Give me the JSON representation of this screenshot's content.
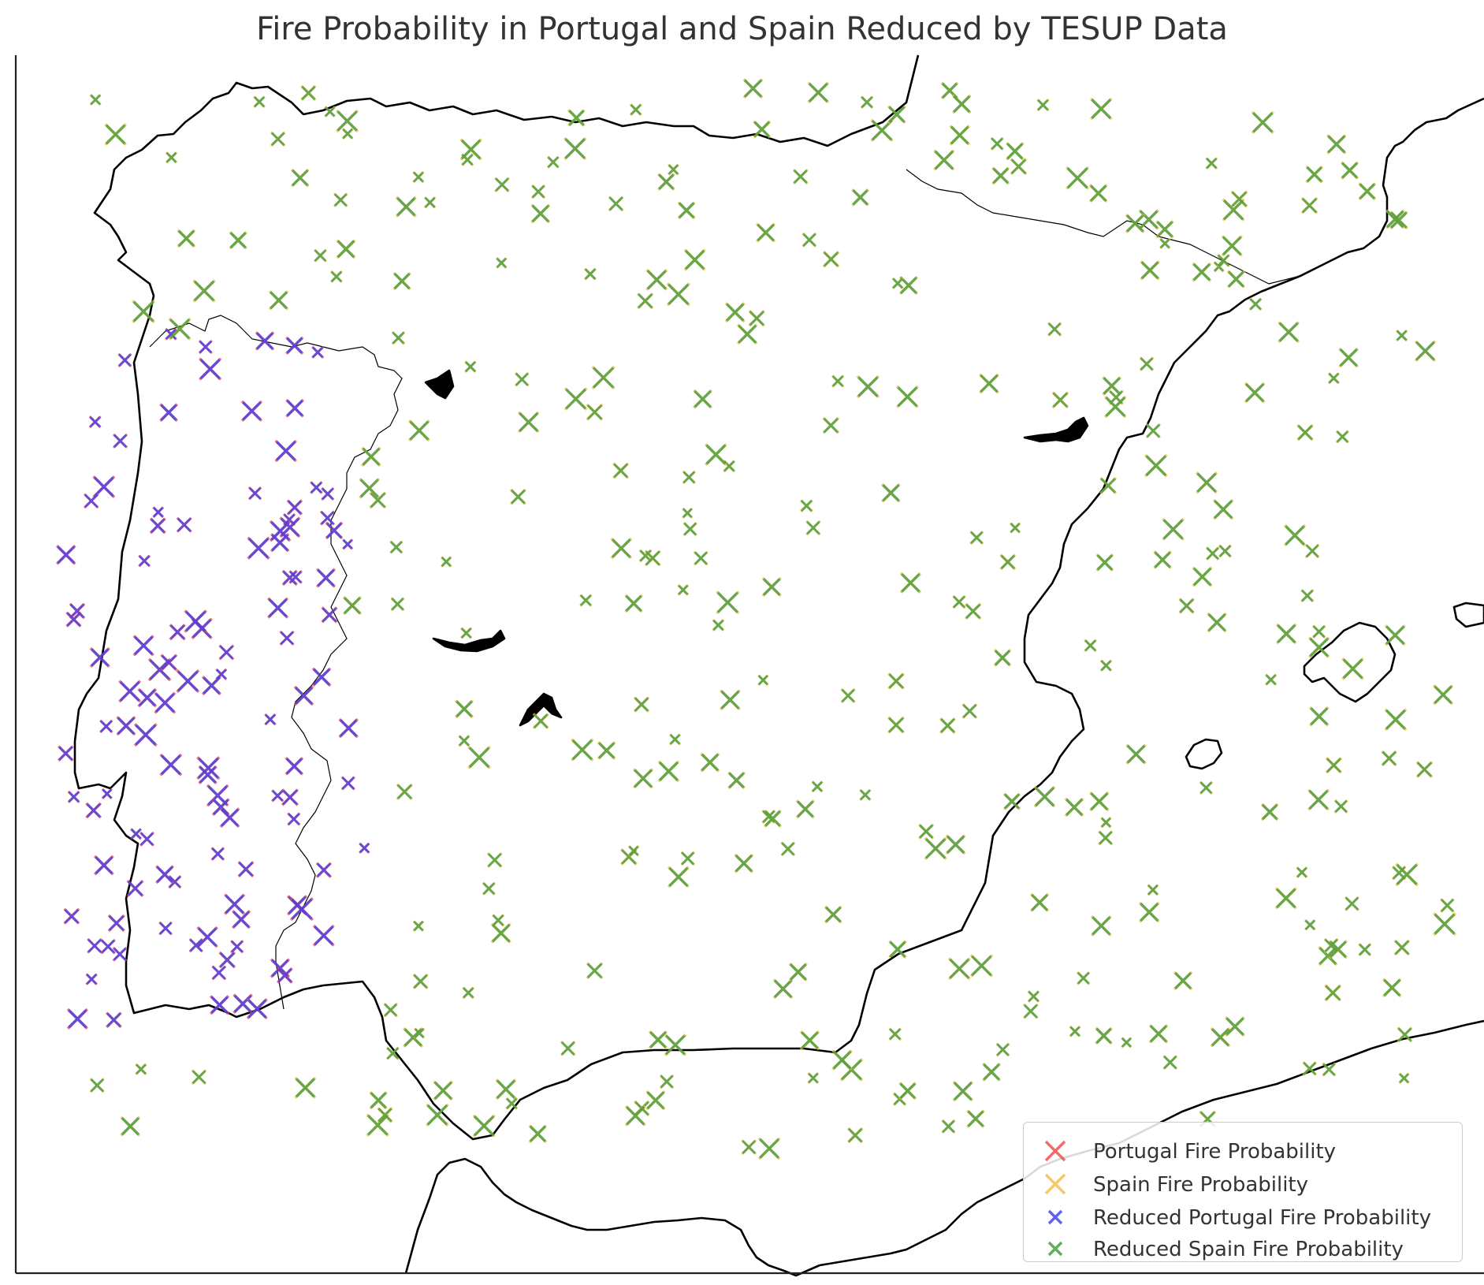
{
  "title": "Fire Probability in Portugal and Spain Reduced by TESUP Data",
  "legend": [
    {
      "label": "Portugal Fire Probability",
      "color": "#f04545"
    },
    {
      "label": "Spain Fire Probability",
      "color": "#f5b942"
    },
    {
      "label": "Reduced Portugal Fire Probability",
      "color": "#3b3bf0"
    },
    {
      "label": "Reduced Spain Fire Probability",
      "color": "#3a9a3a"
    }
  ],
  "map": {
    "projection": "PlateCarree",
    "lon_range": [
      -10.0,
      4.5
    ],
    "lat_range": [
      35.5,
      44.0
    ],
    "features": [
      "coastline",
      "borders"
    ],
    "marker": "x"
  }
}
